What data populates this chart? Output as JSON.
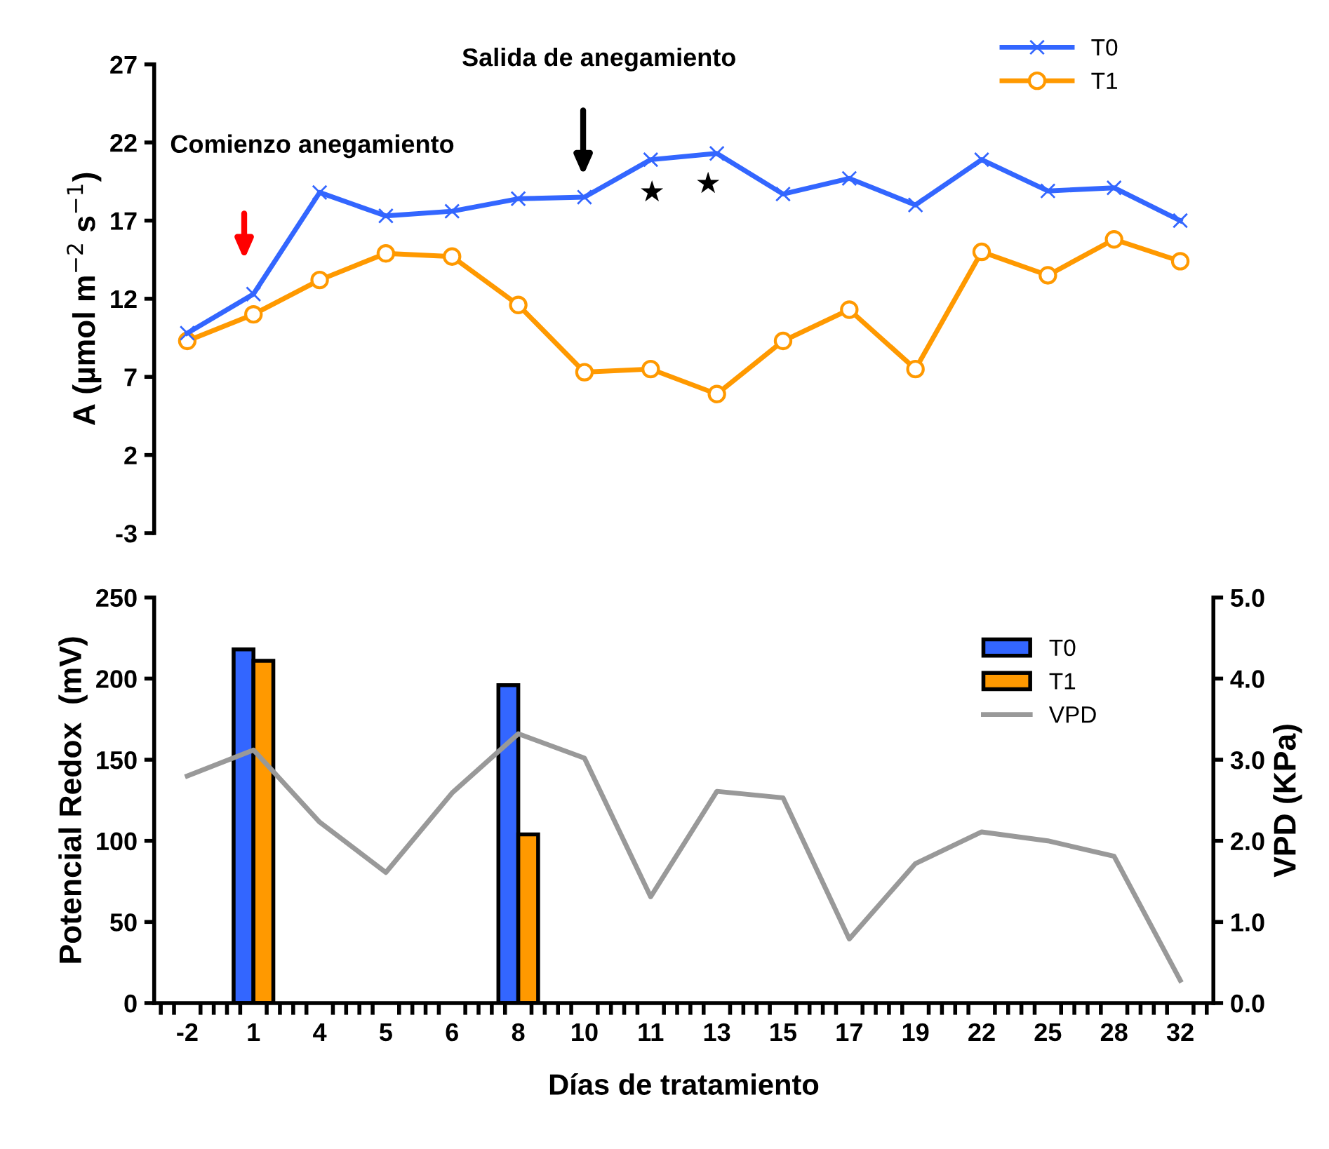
{
  "chart_data": [
    {
      "type": "line",
      "ylabel": "A (µmol m$^{−2}$ s$^{−1}$)",
      "categories": [
        "-2",
        "1",
        "4",
        "5",
        "6",
        "8",
        "10",
        "11",
        "13",
        "15",
        "17",
        "19",
        "22",
        "25",
        "28",
        "32"
      ],
      "ylim": [
        -3,
        27
      ],
      "yticks": [
        -3,
        2,
        7,
        12,
        17,
        22,
        27
      ],
      "tick_labels": "y",
      "legend": "top right",
      "grid": false,
      "series": [
        {
          "name": "T0",
          "color": "#3366ff",
          "marker": "cross",
          "values": [
            9.8,
            12.3,
            18.8,
            17.3,
            17.6,
            18.4,
            18.5,
            20.9,
            21.3,
            18.7,
            19.7,
            18.0,
            20.9,
            18.9,
            19.1,
            17.0
          ]
        },
        {
          "name": "T1",
          "color": "#ff9900",
          "marker": "circle",
          "values": [
            9.3,
            11.0,
            13.2,
            14.9,
            14.7,
            11.6,
            7.3,
            7.5,
            5.9,
            9.3,
            11.3,
            7.5,
            15.0,
            13.5,
            15.8,
            14.4
          ]
        }
      ],
      "annotations": [
        "Comienzo anegamiento",
        "Salida de anegamiento",
        "★",
        "★"
      ]
    },
    {
      "type": "bar",
      "xlabel": "Días de tratamiento",
      "ylabel": "Potencial Redox  (mV)",
      "y2label": "VPD (KPa)",
      "categories": [
        "-2",
        "1",
        "4",
        "5",
        "6",
        "8",
        "10",
        "11",
        "13",
        "15",
        "17",
        "19",
        "22",
        "25",
        "28",
        "32"
      ],
      "ylim": [
        0,
        250
      ],
      "yticks": [
        0,
        50,
        100,
        150,
        200,
        250
      ],
      "y2lim": [
        0,
        5
      ],
      "y2ticks": [
        {
          "value": 0,
          "label": "0.0"
        },
        {
          "value": 1,
          "label": "1.0"
        },
        {
          "value": 2,
          "label": "2.0"
        },
        {
          "value": 3,
          "label": "3.0"
        },
        {
          "value": 4,
          "label": "4.0"
        },
        {
          "value": 5,
          "label": "5.0"
        }
      ],
      "legend": "top right",
      "grid": false,
      "series": [
        {
          "name": "T0",
          "color": "#3366ff",
          "values": [
            null,
            218,
            null,
            null,
            null,
            196,
            null,
            null,
            null,
            null,
            null,
            null,
            null,
            null,
            null,
            null
          ]
        },
        {
          "name": "T1",
          "color": "#ff9900",
          "values": [
            null,
            211,
            null,
            null,
            null,
            104,
            null,
            null,
            null,
            null,
            null,
            null,
            null,
            null,
            null,
            null
          ]
        },
        {
          "name": "VPD",
          "type": "line",
          "axis": "y2",
          "color": "#999999",
          "values": [
            2.8,
            3.12,
            2.23,
            1.61,
            2.59,
            3.32,
            3.02,
            1.31,
            2.61,
            2.53,
            0.79,
            1.72,
            2.11,
            2.0,
            1.81,
            0.28
          ]
        }
      ]
    }
  ]
}
